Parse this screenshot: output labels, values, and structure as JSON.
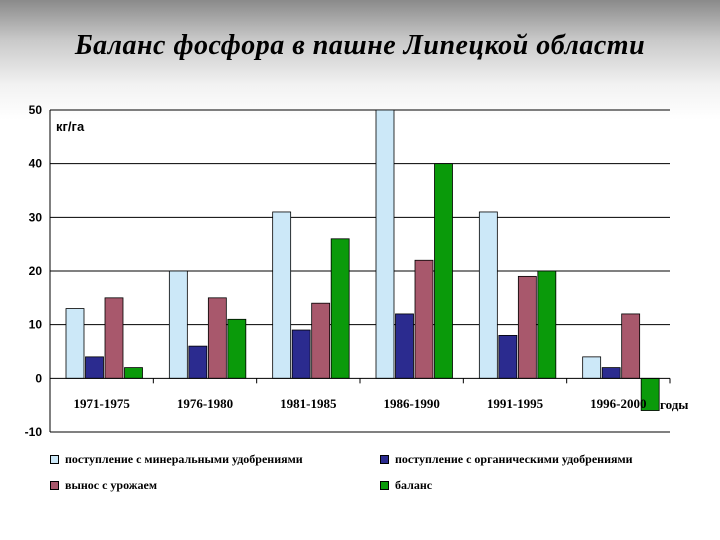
{
  "chart_data": {
    "type": "bar",
    "title": "Баланс фосфора в пашне Липецкой области",
    "ylabel": "кг/га",
    "xlabel": "годы",
    "ylim": [
      -10,
      50
    ],
    "yticks": [
      50,
      40,
      30,
      20,
      10,
      0,
      -10
    ],
    "grid": true,
    "legend_position": "bottom",
    "categories": [
      "1971-1975",
      "1976-1980",
      "1981-1985",
      "1986-1990",
      "1991-1995",
      "1996-2000"
    ],
    "series": [
      {
        "name": "поступление с минеральными удобрениями",
        "color": "#cce8f8",
        "values": [
          13,
          20,
          31,
          50,
          31,
          4
        ]
      },
      {
        "name": "поступление с органическими удобрениями",
        "color": "#2b2b8f",
        "values": [
          4,
          6,
          9,
          12,
          8,
          2
        ]
      },
      {
        "name": "вынос с урожаем",
        "color": "#a8586c",
        "values": [
          15,
          15,
          14,
          22,
          19,
          12
        ]
      },
      {
        "name": "баланс",
        "color": "#0a9a0a",
        "values": [
          2,
          11,
          26,
          40,
          20,
          -6
        ]
      }
    ]
  }
}
